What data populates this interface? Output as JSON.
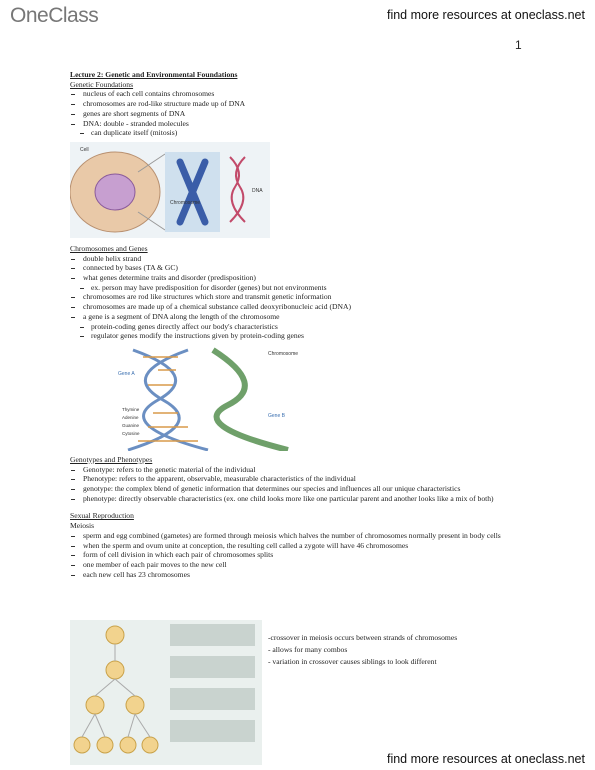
{
  "header": {
    "logo": "OneClass",
    "link": "find more resources at oneclass.net",
    "page_number": "1"
  },
  "title": "Lecture 2: Genetic and Environmental Foundations",
  "sections": [
    {
      "heading": "Genetic Foundations",
      "items": [
        {
          "text": "nucleus of each cell contains chromosomes"
        },
        {
          "text": "chromosomes are rod-like structure made up of DNA"
        },
        {
          "text": "genes are short segments of DNA"
        },
        {
          "text": "DNA: double - stranded molecules",
          "subitems": [
            "can duplicate itself (mitosis)"
          ]
        }
      ]
    },
    {
      "heading": "Chromosomes and Genes",
      "items": [
        {
          "text": "double helix strand"
        },
        {
          "text": "connected by bases (TA & GC)"
        },
        {
          "text": "what genes determine traits and disorder (predisposition)",
          "subitems": [
            "ex. person may have predisposition for disorder (genes) but not environments"
          ]
        },
        {
          "text": "chromosomes are rod like structures which store and transmit genetic information"
        },
        {
          "text": "chromosomes are made up of a chemical substance called deoxyribonucleic acid (DNA)"
        },
        {
          "text": "a gene is a segment of DNA along the length of the chromosome",
          "subitems": [
            "protein-coding genes directly affect our body's characteristics",
            "regulator genes modify the instructions given by protein-coding genes"
          ]
        }
      ]
    },
    {
      "heading": "Genotypes and Phenotypes",
      "items": [
        {
          "text": "Genotype: refers to the genetic material of the individual"
        },
        {
          "text": "Phenotype: refers to the apparent, observable, measurable characteristics of the individual"
        },
        {
          "text": "genotype: the complex blend of genetic information that determines our species and influences all our unique characteristics"
        },
        {
          "text": "phenotype: directly observable characteristics (ex. one child looks more like one particular parent and another looks like a mix of both)"
        }
      ]
    },
    {
      "heading": "Sexual Reproduction",
      "subheading": "Meiosis",
      "items": [
        {
          "text": "sperm and egg combined (gametes) are formed through meiosis which halves the number of chromosomes normally present in body cells"
        },
        {
          "text": "when the sperm and ovum unite at conception, the resulting cell called a zygote will have 46 chromosomes"
        },
        {
          "text": "form of cell division in which each pair of chromosomes splits"
        },
        {
          "text": "one member of each pair moves to the new cell"
        },
        {
          "text": "each new cell has 23 chromosomes"
        }
      ]
    }
  ],
  "figures": [
    {
      "labels": [
        "Cell",
        "Chromosome",
        "DNA"
      ]
    },
    {
      "labels": [
        "Chromosome",
        "Gene A",
        "Gene B",
        "Thymine",
        "Adenine",
        "Guanine",
        "Cytosine"
      ]
    }
  ],
  "side_notes": [
    "-crossover in meiosis occurs between strands of chromosomes",
    "- allows for many combos",
    "- variation in crossover causes siblings to look different"
  ],
  "footer": {
    "link": "find more resources at oneclass.net"
  }
}
